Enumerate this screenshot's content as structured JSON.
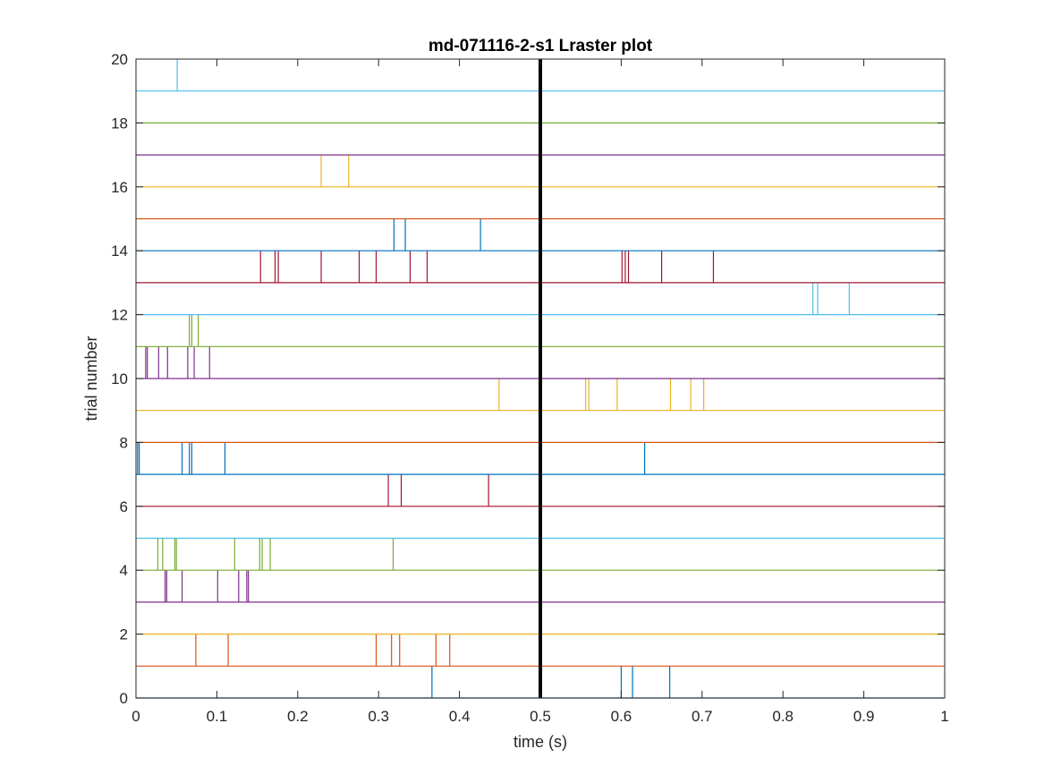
{
  "chart_data": {
    "type": "raster",
    "title": "md-071116-2-s1 Lraster plot",
    "xlabel": "time (s)",
    "ylabel": "trial number",
    "xlim": [
      0,
      1
    ],
    "ylim": [
      0,
      20
    ],
    "xticks": [
      0,
      0.1,
      0.2,
      0.3,
      0.4,
      0.5,
      0.6,
      0.7,
      0.8,
      0.9,
      1
    ],
    "xtick_labels": [
      "0",
      "0.1",
      "0.2",
      "0.3",
      "0.4",
      "0.5",
      "0.6",
      "0.7",
      "0.8",
      "0.9",
      "1"
    ],
    "yticks": [
      0,
      2,
      4,
      6,
      8,
      10,
      12,
      14,
      16,
      18,
      20
    ],
    "ytick_labels": [
      "0",
      "2",
      "4",
      "6",
      "8",
      "10",
      "12",
      "14",
      "16",
      "18",
      "20"
    ],
    "event_marker": {
      "x": 0.5,
      "color": "#000000"
    },
    "grid": false,
    "colors": [
      "#0072BD",
      "#D95319",
      "#EDB120",
      "#7E2F8E",
      "#77AC30",
      "#4DBEEE",
      "#A2142F"
    ],
    "trials": [
      {
        "trial": 1,
        "color": "#0072BD",
        "spikes": [
          0.366,
          0.6,
          0.614,
          0.66
        ]
      },
      {
        "trial": 2,
        "color": "#D95319",
        "spikes": [
          0.074,
          0.114,
          0.297,
          0.316,
          0.326,
          0.371,
          0.388
        ]
      },
      {
        "trial": 3,
        "color": "#EDB120",
        "spikes": []
      },
      {
        "trial": 4,
        "color": "#7E2F8E",
        "spikes": [
          0.036,
          0.038,
          0.057,
          0.101,
          0.127,
          0.137,
          0.139
        ]
      },
      {
        "trial": 5,
        "color": "#77AC30",
        "spikes": [
          0.027,
          0.033,
          0.048,
          0.05,
          0.122,
          0.153,
          0.156,
          0.166,
          0.318
        ]
      },
      {
        "trial": 6,
        "color": "#4DBEEE",
        "spikes": []
      },
      {
        "trial": 7,
        "color": "#A2142F",
        "spikes": [
          0.312,
          0.328,
          0.436
        ]
      },
      {
        "trial": 8,
        "color": "#0072BD",
        "spikes": [
          0.002,
          0.004,
          0.057,
          0.066,
          0.069,
          0.11,
          0.629
        ]
      },
      {
        "trial": 9,
        "color": "#D95319",
        "spikes": []
      },
      {
        "trial": 10,
        "color": "#EDB120",
        "spikes": [
          0.449,
          0.556,
          0.56,
          0.595,
          0.661,
          0.686,
          0.702
        ]
      },
      {
        "trial": 11,
        "color": "#7E2F8E",
        "spikes": [
          0.012,
          0.014,
          0.028,
          0.039,
          0.064,
          0.072,
          0.091
        ]
      },
      {
        "trial": 12,
        "color": "#77AC30",
        "spikes": [
          0.066,
          0.069,
          0.077
        ]
      },
      {
        "trial": 13,
        "color": "#4DBEEE",
        "spikes": [
          0.837,
          0.843,
          0.882
        ]
      },
      {
        "trial": 14,
        "color": "#A2142F",
        "spikes": [
          0.154,
          0.172,
          0.176,
          0.229,
          0.276,
          0.297,
          0.339,
          0.36,
          0.601,
          0.605,
          0.609,
          0.65,
          0.714
        ]
      },
      {
        "trial": 15,
        "color": "#0072BD",
        "spikes": [
          0.319,
          0.333,
          0.426
        ]
      },
      {
        "trial": 16,
        "color": "#D95319",
        "spikes": []
      },
      {
        "trial": 17,
        "color": "#EDB120",
        "spikes": [
          0.229,
          0.263
        ]
      },
      {
        "trial": 18,
        "color": "#7E2F8E",
        "spikes": []
      },
      {
        "trial": 19,
        "color": "#77AC30",
        "spikes": []
      },
      {
        "trial": 20,
        "color": "#4DBEEE",
        "spikes": [
          0.051
        ]
      }
    ]
  }
}
